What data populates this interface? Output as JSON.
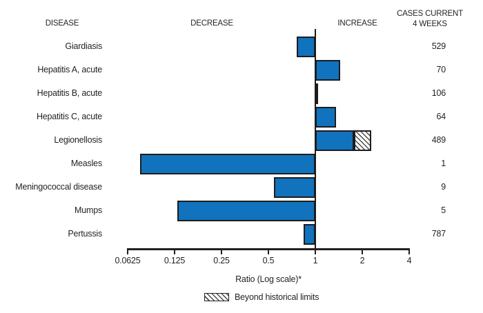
{
  "headers": {
    "disease": "DISEASE",
    "decrease": "DECREASE",
    "increase": "INCREASE",
    "cases_line1": "CASES CURRENT",
    "cases_line2": "4 WEEKS"
  },
  "axis": {
    "title": "Ratio (Log scale)*",
    "ticks": [
      0.0625,
      0.125,
      0.25,
      0.5,
      1,
      2,
      4
    ],
    "tick_labels": [
      "0.0625",
      "0.125",
      "0.25",
      "0.5",
      "1",
      "2",
      "4"
    ]
  },
  "legend": {
    "beyond_label": "Beyond historical limits"
  },
  "colors": {
    "bar_fill": "#1172bd",
    "bar_border": "#1c1c1c",
    "text": "#231f20"
  },
  "chart_data": {
    "type": "bar",
    "orientation": "horizontal",
    "scale": "log2",
    "baseline": 1,
    "xlabel": "Ratio (Log scale)*",
    "xlim": [
      0.0625,
      4
    ],
    "rows": [
      {
        "disease": "Giardiasis",
        "ratio": 0.76,
        "cases": 529,
        "beyond_historical_limits": false
      },
      {
        "disease": "Hepatitis A, acute",
        "ratio": 1.44,
        "cases": 70,
        "beyond_historical_limits": false
      },
      {
        "disease": "Hepatitis B, acute",
        "ratio": 1.04,
        "cases": 106,
        "beyond_historical_limits": false
      },
      {
        "disease": "Hepatitis C, acute",
        "ratio": 1.36,
        "cases": 64,
        "beyond_historical_limits": false
      },
      {
        "disease": "Legionellosis",
        "ratio": 2.28,
        "historical_limit_ratio": 1.77,
        "cases": 489,
        "beyond_historical_limits": true
      },
      {
        "disease": "Measles",
        "ratio": 0.075,
        "cases": 1,
        "beyond_historical_limits": false
      },
      {
        "disease": "Meningococcal disease",
        "ratio": 0.54,
        "cases": 9,
        "beyond_historical_limits": false
      },
      {
        "disease": "Mumps",
        "ratio": 0.13,
        "cases": 5,
        "beyond_historical_limits": false
      },
      {
        "disease": "Pertussis",
        "ratio": 0.84,
        "cases": 787,
        "beyond_historical_limits": false
      }
    ]
  }
}
